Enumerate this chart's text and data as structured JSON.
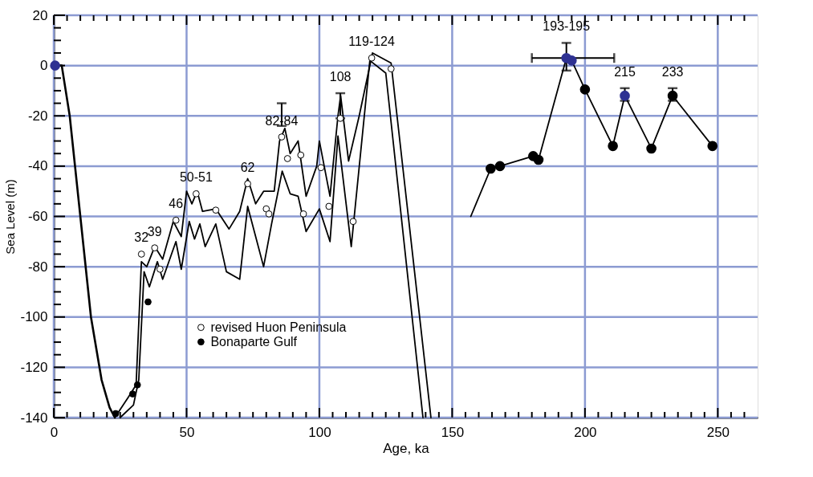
{
  "chart_data": {
    "type": "line",
    "xlabel": "Age, ka",
    "ylabel": "Sea Level (m)",
    "xlim": [
      0,
      265
    ],
    "ylim": [
      -140,
      20
    ],
    "xticks": [
      0,
      {
        "value": 5,
        "label": null
      },
      {
        "value": 10,
        "label": null
      },
      {
        "value": 15,
        "label": null
      },
      {
        "value": 20,
        "label": null
      },
      {
        "value": 25,
        "label": null
      },
      {
        "value": 30,
        "label": null
      },
      {
        "value": 35,
        "label": null
      },
      {
        "value": 40,
        "label": null
      },
      {
        "value": 45,
        "label": null
      },
      50,
      {
        "value": 55,
        "label": null
      },
      {
        "value": 60,
        "label": null
      },
      {
        "value": 65,
        "label": null
      },
      {
        "value": 70,
        "label": null
      },
      {
        "value": 75,
        "label": null
      },
      {
        "value": 80,
        "label": null
      },
      {
        "value": 85,
        "label": null
      },
      {
        "value": 90,
        "label": null
      },
      {
        "value": 95,
        "label": null
      },
      100,
      {
        "value": 105,
        "label": null
      },
      {
        "value": 110,
        "label": null
      },
      {
        "value": 115,
        "label": null
      },
      {
        "value": 120,
        "label": null
      },
      {
        "value": 125,
        "label": null
      },
      {
        "value": 130,
        "label": null
      },
      {
        "value": 135,
        "label": null
      },
      {
        "value": 140,
        "label": null
      },
      {
        "value": 145,
        "label": null
      },
      150,
      {
        "value": 155,
        "label": null
      },
      {
        "value": 160,
        "label": null
      },
      {
        "value": 165,
        "label": null
      },
      {
        "value": 170,
        "label": null
      },
      {
        "value": 175,
        "label": null
      },
      {
        "value": 180,
        "label": null
      },
      {
        "value": 185,
        "label": null
      },
      {
        "value": 190,
        "label": null
      },
      {
        "value": 195,
        "label": null
      },
      200,
      {
        "value": 205,
        "label": null
      },
      {
        "value": 210,
        "label": null
      },
      {
        "value": 215,
        "label": null
      },
      {
        "value": 220,
        "label": null
      },
      {
        "value": 225,
        "label": null
      },
      {
        "value": 230,
        "label": null
      },
      {
        "value": 235,
        "label": null
      },
      {
        "value": 240,
        "label": null
      },
      {
        "value": 245,
        "label": null
      },
      250,
      {
        "value": 255,
        "label": null
      },
      {
        "value": 260,
        "label": null
      }
    ],
    "yticks": [
      -140,
      {
        "value": -135,
        "label": null
      },
      {
        "value": -130,
        "label": null
      },
      {
        "value": -125,
        "label": null
      },
      -120,
      {
        "value": -115,
        "label": null
      },
      {
        "value": -110,
        "label": null
      },
      {
        "value": -105,
        "label": null
      },
      -100,
      {
        "value": -95,
        "label": null
      },
      {
        "value": -90,
        "label": null
      },
      {
        "value": -85,
        "label": null
      },
      -80,
      {
        "value": -75,
        "label": null
      },
      {
        "value": -70,
        "label": null
      },
      {
        "value": -65,
        "label": null
      },
      -60,
      {
        "value": -55,
        "label": null
      },
      {
        "value": -50,
        "label": null
      },
      {
        "value": -45,
        "label": null
      },
      -40,
      {
        "value": -35,
        "label": null
      },
      {
        "value": -30,
        "label": null
      },
      {
        "value": -25,
        "label": null
      },
      -20,
      {
        "value": -15,
        "label": null
      },
      {
        "value": -10,
        "label": null
      },
      {
        "value": -5,
        "label": null
      },
      0,
      {
        "value": 5,
        "label": null
      },
      {
        "value": 10,
        "label": null
      },
      {
        "value": 15,
        "label": null
      },
      20
    ],
    "grid": true,
    "legend": "bottom left",
    "series": [
      {
        "color": "#000000",
        "x": [
          0,
          3,
          6,
          10,
          14,
          18,
          21,
          23
        ],
        "values": [
          0,
          0,
          -20,
          -60,
          -100,
          -125,
          -136,
          -140
        ]
      },
      {
        "color": "#000000",
        "x": [
          23,
          28,
          31,
          33,
          35,
          38,
          41,
          45,
          48,
          50,
          52,
          54,
          56,
          61,
          66,
          70,
          73,
          76,
          79,
          83,
          85,
          87,
          89,
          92,
          95,
          99,
          100,
          104,
          107,
          108,
          111,
          115,
          120,
          127,
          142
        ],
        "values": [
          -140,
          -132,
          -127,
          -78,
          -80,
          -72,
          -77,
          -62,
          -68,
          -50,
          -55,
          -50,
          -58,
          -57,
          -65,
          -58,
          -45,
          -55,
          -50,
          -50,
          -30,
          -25,
          -35,
          -30,
          -52,
          -40,
          -30,
          -52,
          -20,
          -12,
          -38,
          -20,
          5,
          1,
          -140
        ]
      },
      {
        "color": "#000000",
        "x": [
          25,
          30,
          32,
          34,
          36,
          39,
          41,
          46,
          48,
          51,
          53,
          55,
          57,
          61,
          65,
          70,
          73,
          76,
          79,
          82,
          86,
          89,
          92,
          95,
          100,
          104,
          107,
          112,
          119,
          125,
          139
        ],
        "values": [
          -140,
          -135,
          -125,
          -82,
          -88,
          -78,
          -85,
          -70,
          -81,
          -62,
          -69,
          -63,
          -72,
          -63,
          -82,
          -85,
          -56,
          -68,
          -80,
          -63,
          -42,
          -51,
          -52,
          -66,
          -57,
          -70,
          -28,
          -72,
          2,
          -3,
          -140
        ]
      },
      {
        "color": "#000000",
        "x": [
          157,
          164.5,
          168,
          180.5,
          182.5,
          193,
          195,
          200,
          210.5,
          215,
          225,
          233,
          248
        ],
        "values": [
          -60,
          -41,
          -40,
          -36,
          -37.5,
          3,
          2,
          -9.5,
          -32,
          -12,
          -33,
          -12,
          -32
        ]
      },
      {
        "type": "scatter",
        "name": "revised Huon Peninsula",
        "color": "#ffffff",
        "x": [
          33,
          38,
          40,
          46,
          53.6,
          61,
          73,
          80,
          81,
          85.8,
          88,
          93,
          94,
          100.6,
          103.6,
          107.9,
          112.7,
          119.7,
          127
        ],
        "values": [
          -75,
          -72.5,
          -81,
          -61.5,
          -51,
          -57.5,
          -47,
          -57,
          -59,
          -28.4,
          -37,
          -35.6,
          -59,
          -40.6,
          -56,
          -21,
          -62,
          3,
          -1.3
        ],
        "errors": [
          null,
          null,
          null,
          null,
          null,
          null,
          null,
          null,
          null,
          [
            -24,
            -15
          ],
          null,
          null,
          null,
          null,
          null,
          [
            -21,
            -11
          ],
          null,
          null,
          null
        ]
      },
      {
        "type": "scatter",
        "name": "Bonaparte Gulf",
        "color": "#000000",
        "x": [
          23.3,
          29.7,
          31.5,
          35.5
        ],
        "values": [
          -138.4,
          -130.6,
          -127,
          -94
        ]
      },
      {
        "type": "scatter",
        "color": "#000000",
        "x": [
          164.5,
          168,
          180.5,
          182.5,
          200,
          210.5,
          225,
          233,
          248
        ],
        "values": [
          -41,
          -40,
          -36,
          -37.5,
          -9.5,
          -32,
          -33,
          -12,
          -32
        ],
        "errors": [
          null,
          null,
          null,
          null,
          null,
          null,
          null,
          [
            -14,
            -9
          ],
          null
        ]
      },
      {
        "type": "scatter",
        "color": "#2e3192",
        "x": [
          0.5,
          193,
          195,
          215
        ],
        "values": [
          0,
          3,
          2,
          -12
        ],
        "errors": [
          null,
          [
            -2,
            9
          ],
          null,
          [
            -14,
            -9
          ]
        ],
        "xerrors": [
          null,
          [
            180,
            211
          ],
          null,
          null
        ]
      }
    ],
    "annotations": [
      {
        "text": "32",
        "x": 33,
        "y": -75
      },
      {
        "text": "39",
        "x": 38,
        "y": -72.5
      },
      {
        "text": "46",
        "x": 46,
        "y": -61.5
      },
      {
        "text": "50-51",
        "x": 53.6,
        "y": -51
      },
      {
        "text": "62",
        "x": 73,
        "y": -47
      },
      {
        "text": "82-84",
        "x": 85.8,
        "y": -28.4
      },
      {
        "text": "108",
        "x": 107.9,
        "y": -11
      },
      {
        "text": "119-124",
        "x": 119.7,
        "y": 3
      },
      {
        "text": "193-195",
        "x": 193,
        "y": 9
      },
      {
        "text": "215",
        "x": 215,
        "y": -9
      },
      {
        "text": "233",
        "x": 233,
        "y": -9
      }
    ]
  }
}
